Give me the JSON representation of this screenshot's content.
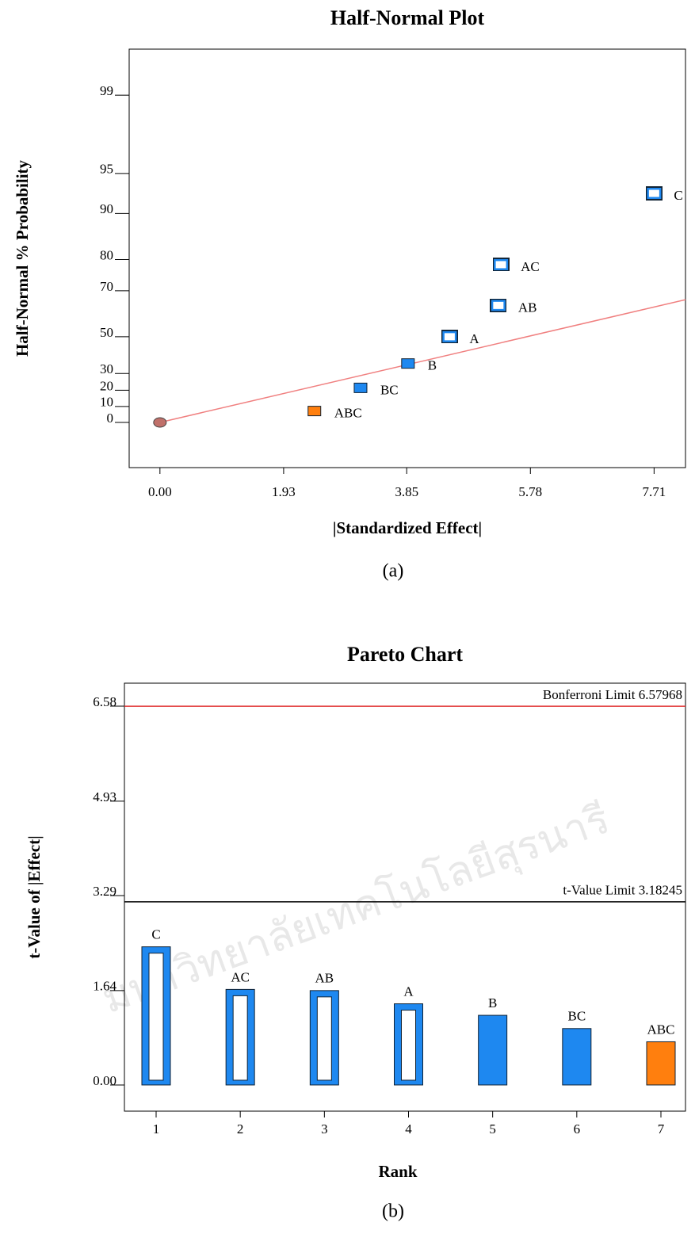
{
  "chart_data": [
    {
      "type": "scatter",
      "title": "Half-Normal Plot",
      "x_label": "|Standardized Effect|",
      "y_label": "Half-Normal % Probability",
      "caption": "(a)",
      "yscale": "half-normal-probability",
      "xlim": [
        -0.48,
        8.2
      ],
      "ylim": [
        -27.8,
        99.67
      ],
      "xticks": [
        {
          "value": 0,
          "label": "0.00"
        },
        {
          "value": 1.93,
          "label": "1.93"
        },
        {
          "value": 3.85,
          "label": "3.85"
        },
        {
          "value": 5.78,
          "label": "5.78"
        },
        {
          "value": 7.71,
          "label": "7.71"
        }
      ],
      "yticks": [
        0,
        10,
        20,
        30,
        50,
        70,
        80,
        90,
        95,
        99
      ],
      "points": {
        "labels": [
          null,
          "ABC",
          "BC",
          "B",
          "A",
          "AB",
          "AC",
          "C"
        ],
        "x": [
          0,
          2.41,
          3.13,
          3.87,
          4.52,
          5.28,
          5.32,
          7.71
        ],
        "values": [
          0,
          7.14,
          21.43,
          35.71,
          50,
          64.29,
          78.57,
          92.86
        ],
        "colors": [
          "#c0706a",
          "#ff7f0e",
          "#1e88f0",
          "#1e88f0",
          "#1e88f0",
          "#1e88f0",
          "#1e88f0",
          "#1e88f0"
        ],
        "hollow": [
          false,
          false,
          false,
          false,
          true,
          true,
          true,
          true
        ]
      },
      "reference_line": {
        "x": [
          0,
          8.2
        ],
        "values": [
          0,
          66.6
        ],
        "color": "#f08080"
      }
    },
    {
      "type": "bar",
      "title": "Pareto Chart",
      "x_label": "Rank",
      "y_label": "t-Value of |Effect|",
      "caption": "(b)",
      "categories": [
        "1",
        "2",
        "3",
        "4",
        "5",
        "6",
        "7"
      ],
      "values": [
        2.4,
        1.66,
        1.64,
        1.41,
        1.21,
        0.98,
        0.75
      ],
      "value_labels": [
        "C",
        "AC",
        "AB",
        "A",
        "B",
        "BC",
        "ABC"
      ],
      "colors": [
        "#1e88f0",
        "#1e88f0",
        "#1e88f0",
        "#1e88f0",
        "#1e88f0",
        "#1e88f0",
        "#ff7f0e"
      ],
      "hollow": [
        true,
        true,
        true,
        true,
        false,
        false,
        false
      ],
      "ylim": [
        -0.455,
        6.98
      ],
      "yticks": [
        {
          "value": 0,
          "label": "0.00"
        },
        {
          "value": 1.64,
          "label": "1.64"
        },
        {
          "value": 3.29,
          "label": "3.29"
        },
        {
          "value": 4.93,
          "label": "4.93"
        },
        {
          "value": 6.58,
          "label": "6.58"
        }
      ],
      "reference_lines": [
        {
          "label": "Bonferroni Limit 6.57968",
          "value": 6.57968,
          "color": "#e03030"
        },
        {
          "label": "t-Value Limit 3.18245",
          "value": 3.18245,
          "color": "#000000"
        }
      ]
    }
  ],
  "watermark": "มหาวิทยาลัยเทคโนโลยีสุรนารี"
}
